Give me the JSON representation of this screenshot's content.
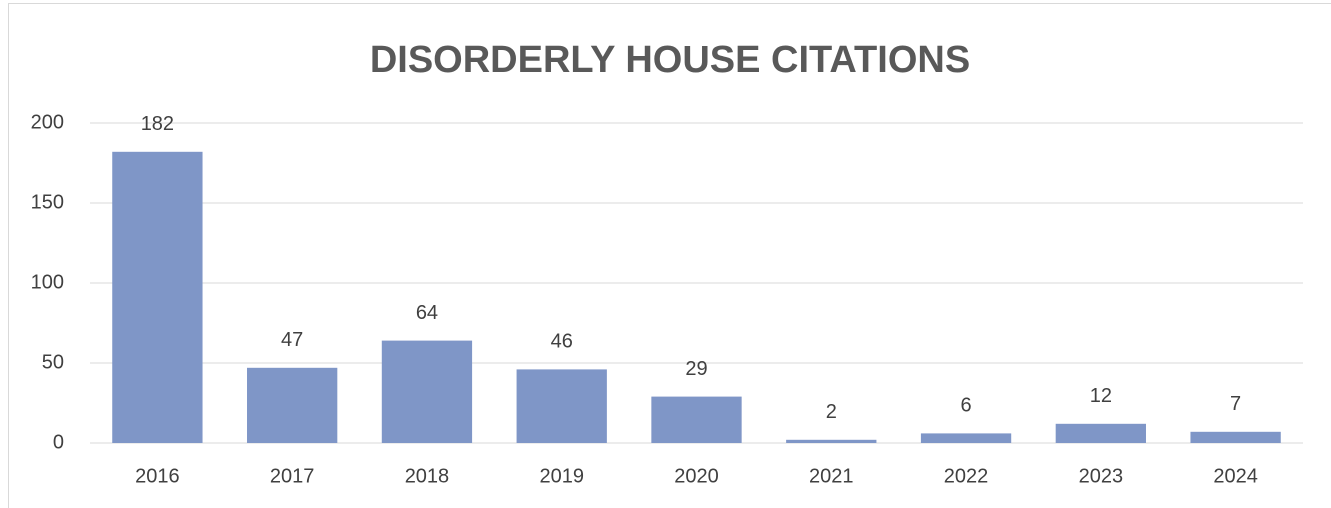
{
  "chart_data": {
    "type": "bar",
    "title": "DISORDERLY HOUSE CITATIONS",
    "categories": [
      "2016",
      "2017",
      "2018",
      "2019",
      "2020",
      "2021",
      "2022",
      "2023",
      "2024"
    ],
    "values": [
      182,
      47,
      64,
      46,
      29,
      2,
      6,
      12,
      7
    ],
    "color": "#7f96c7",
    "ylim": [
      0,
      200
    ],
    "yticks": [
      0,
      50,
      100,
      150,
      200
    ],
    "grid": true
  }
}
